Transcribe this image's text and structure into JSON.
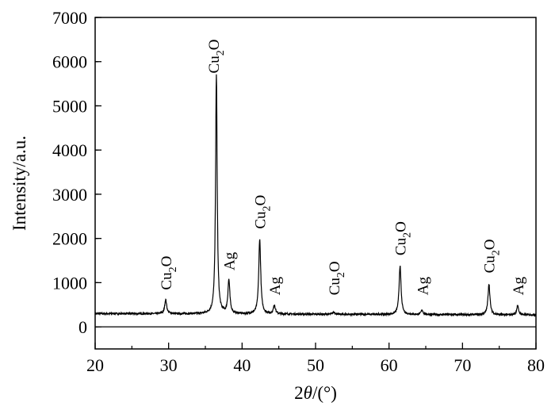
{
  "chart_data": {
    "type": "line",
    "title": "",
    "xlabel": "2θ/(°)",
    "xlabel_parts": {
      "pre": "2",
      "italic": "θ",
      "post": "/(°)"
    },
    "ylabel": "Intensity/a.u.",
    "xlim": [
      20,
      80
    ],
    "ylim": [
      -500,
      7000
    ],
    "xticks": [
      20,
      30,
      40,
      50,
      60,
      70,
      80
    ],
    "yticks": [
      0,
      1000,
      2000,
      3000,
      4000,
      5000,
      6000,
      7000
    ],
    "grid": false,
    "legend": "none",
    "baseline_intensity": 300,
    "zero_line": true,
    "line_color": "#000000",
    "peaks": [
      {
        "x": 29.6,
        "y": 620,
        "label": {
          "base": "Cu",
          "sub": "2",
          "tail": "O"
        }
      },
      {
        "x": 36.5,
        "y": 5700,
        "label": {
          "base": "Cu",
          "sub": "2",
          "tail": "O"
        }
      },
      {
        "x": 38.2,
        "y": 1060,
        "label": {
          "base": "Ag",
          "sub": "",
          "tail": ""
        }
      },
      {
        "x": 42.4,
        "y": 2000,
        "label": {
          "base": "Cu",
          "sub": "2",
          "tail": "O"
        }
      },
      {
        "x": 44.4,
        "y": 500,
        "label": {
          "base": "Ag",
          "sub": "",
          "tail": ""
        }
      },
      {
        "x": 52.5,
        "y": 350,
        "label": {
          "base": "Cu",
          "sub": "2",
          "tail": "O"
        }
      },
      {
        "x": 61.5,
        "y": 1400,
        "label": {
          "base": "Cu",
          "sub": "2",
          "tail": "O"
        }
      },
      {
        "x": 64.5,
        "y": 400,
        "label": {
          "base": "Ag",
          "sub": "",
          "tail": ""
        }
      },
      {
        "x": 73.6,
        "y": 1000,
        "label": {
          "base": "Cu",
          "sub": "2",
          "tail": "O"
        }
      },
      {
        "x": 77.5,
        "y": 500,
        "label": {
          "base": "Ag",
          "sub": "",
          "tail": ""
        }
      }
    ]
  }
}
